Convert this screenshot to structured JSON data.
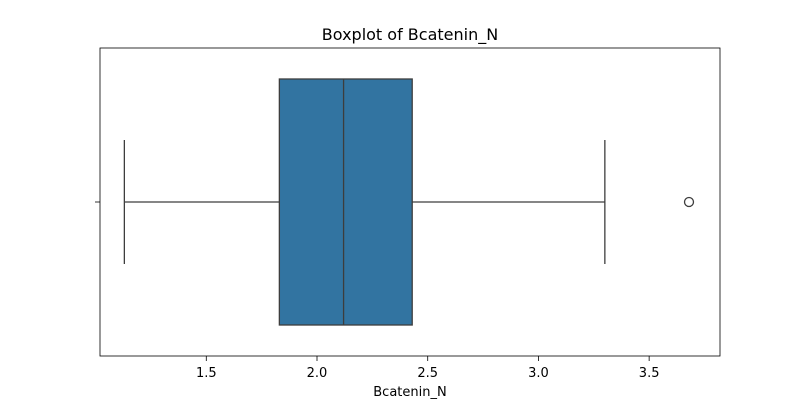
{
  "chart_data": {
    "type": "boxplot",
    "title": "Boxplot of Bcatenin_N",
    "xlabel": "Bcatenin_N",
    "ylabel": "",
    "orientation": "horizontal",
    "xlim": [
      1.02,
      3.82
    ],
    "x_ticks": [
      1.5,
      2.0,
      2.5,
      3.0,
      3.5
    ],
    "x_tick_labels": [
      "1.5",
      "2.0",
      "2.5",
      "3.0",
      "3.5"
    ],
    "grid": false,
    "box": {
      "whisker_low": 1.13,
      "q1": 1.83,
      "median": 2.12,
      "q3": 2.43,
      "whisker_high": 3.3,
      "outliers": [
        3.68
      ]
    },
    "colors": {
      "box_fill": "#3274a1",
      "line": "#3d3d3d",
      "axes": "#000000"
    }
  }
}
